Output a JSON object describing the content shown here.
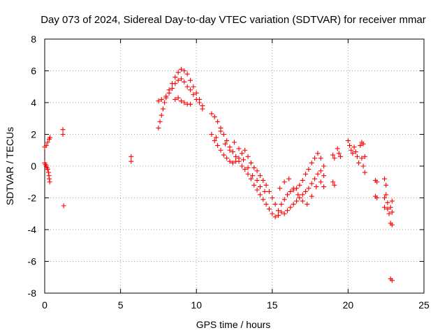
{
  "chart_data": {
    "type": "scatter",
    "title": "Day 073 of 2024, Sidereal Day-to-day VTEC variation (SDTVAR) for receiver mmar",
    "xlabel": "GPS time / hours",
    "ylabel": "SDTVAR / TECUs",
    "xlim": [
      0,
      25
    ],
    "ylim": [
      -8,
      8
    ],
    "xticks": [
      0,
      5,
      10,
      15,
      20,
      25
    ],
    "yticks": [
      -8,
      -6,
      -4,
      -2,
      0,
      2,
      4,
      6,
      8
    ],
    "grid": true,
    "marker": "+",
    "color": "#ff0000",
    "series": [
      {
        "name": "mmar",
        "points": [
          [
            0.0,
            1.2
          ],
          [
            0.1,
            1.3
          ],
          [
            0.2,
            1.5
          ],
          [
            0.3,
            1.7
          ],
          [
            0.35,
            1.8
          ],
          [
            0.0,
            0.2
          ],
          [
            0.05,
            0.1
          ],
          [
            0.1,
            0.0
          ],
          [
            0.15,
            -0.1
          ],
          [
            0.2,
            -0.2
          ],
          [
            0.25,
            -0.4
          ],
          [
            0.28,
            -0.6
          ],
          [
            0.3,
            -0.8
          ],
          [
            0.33,
            -1.0
          ],
          [
            1.2,
            2.3
          ],
          [
            1.2,
            2.0
          ],
          [
            1.25,
            -2.5
          ],
          [
            5.7,
            0.6
          ],
          [
            5.7,
            0.3
          ],
          [
            7.5,
            2.4
          ],
          [
            7.6,
            2.8
          ],
          [
            7.7,
            3.2
          ],
          [
            7.8,
            3.6
          ],
          [
            7.9,
            4.0
          ],
          [
            8.0,
            4.4
          ],
          [
            8.2,
            4.8
          ],
          [
            8.4,
            5.2
          ],
          [
            8.6,
            5.6
          ],
          [
            8.8,
            5.9
          ],
          [
            9.0,
            6.1
          ],
          [
            9.2,
            6.0
          ],
          [
            9.4,
            5.8
          ],
          [
            9.6,
            5.4
          ],
          [
            9.8,
            5.0
          ],
          [
            10.0,
            4.6
          ],
          [
            10.2,
            4.2
          ],
          [
            10.4,
            3.8
          ],
          [
            7.5,
            4.1
          ],
          [
            7.7,
            4.2
          ],
          [
            8.0,
            4.3
          ],
          [
            8.2,
            4.6
          ],
          [
            8.4,
            4.9
          ],
          [
            8.6,
            5.2
          ],
          [
            8.8,
            5.4
          ],
          [
            9.0,
            5.5
          ],
          [
            9.2,
            5.3
          ],
          [
            9.4,
            5.0
          ],
          [
            9.6,
            4.8
          ],
          [
            9.8,
            4.5
          ],
          [
            10.0,
            4.2
          ],
          [
            10.2,
            4.0
          ],
          [
            10.4,
            3.6
          ],
          [
            8.6,
            4.2
          ],
          [
            8.8,
            4.3
          ],
          [
            9.0,
            4.1
          ],
          [
            9.2,
            4.0
          ],
          [
            9.4,
            3.9
          ],
          [
            9.6,
            3.9
          ],
          [
            11.0,
            3.3
          ],
          [
            11.2,
            3.1
          ],
          [
            11.4,
            2.8
          ],
          [
            11.6,
            2.4
          ],
          [
            11.8,
            2.0
          ],
          [
            12.0,
            1.6
          ],
          [
            12.2,
            1.2
          ],
          [
            12.4,
            0.9
          ],
          [
            12.6,
            0.6
          ],
          [
            12.8,
            0.3
          ],
          [
            13.0,
            0.0
          ],
          [
            13.2,
            -0.2
          ],
          [
            13.4,
            -0.5
          ],
          [
            13.6,
            -0.8
          ],
          [
            13.8,
            -1.2
          ],
          [
            14.0,
            -1.5
          ],
          [
            14.2,
            -1.8
          ],
          [
            14.4,
            -2.1
          ],
          [
            14.6,
            -2.4
          ],
          [
            14.8,
            -2.7
          ],
          [
            15.0,
            -3.0
          ],
          [
            15.2,
            -3.2
          ],
          [
            15.4,
            -3.1
          ],
          [
            15.6,
            -2.9
          ],
          [
            11.0,
            2.0
          ],
          [
            11.2,
            1.6
          ],
          [
            11.4,
            1.3
          ],
          [
            11.6,
            1.0
          ],
          [
            11.8,
            0.7
          ],
          [
            12.0,
            0.5
          ],
          [
            12.2,
            0.3
          ],
          [
            12.4,
            0.2
          ],
          [
            12.6,
            0.3
          ],
          [
            12.8,
            0.5
          ],
          [
            13.0,
            0.8
          ],
          [
            13.2,
            1.0
          ],
          [
            13.4,
            0.6
          ],
          [
            13.6,
            0.2
          ],
          [
            13.8,
            -0.1
          ],
          [
            14.0,
            -0.3
          ],
          [
            14.2,
            -0.6
          ],
          [
            14.4,
            -0.9
          ],
          [
            14.6,
            -1.2
          ],
          [
            14.8,
            -1.6
          ],
          [
            15.0,
            -2.0
          ],
          [
            15.2,
            -2.4
          ],
          [
            15.4,
            -2.8
          ],
          [
            11.3,
            1.8
          ],
          [
            11.6,
            2.2
          ],
          [
            11.9,
            1.4
          ],
          [
            12.2,
            1.0
          ],
          [
            12.5,
            1.5
          ],
          [
            12.8,
            1.1
          ],
          [
            13.1,
            0.4
          ],
          [
            13.4,
            -0.1
          ],
          [
            13.7,
            -0.6
          ],
          [
            14.0,
            -0.9
          ],
          [
            14.2,
            -1.3
          ],
          [
            14.5,
            -1.6
          ],
          [
            15.6,
            -2.4
          ],
          [
            15.8,
            -2.1
          ],
          [
            16.0,
            -1.8
          ],
          [
            16.2,
            -1.6
          ],
          [
            16.4,
            -1.5
          ],
          [
            16.6,
            -1.4
          ],
          [
            16.8,
            -1.2
          ],
          [
            17.0,
            -0.9
          ],
          [
            17.2,
            -0.5
          ],
          [
            17.4,
            -0.2
          ],
          [
            17.6,
            0.2
          ],
          [
            17.8,
            0.5
          ],
          [
            18.0,
            0.8
          ],
          [
            18.2,
            0.5
          ],
          [
            18.4,
            0.0
          ],
          [
            15.8,
            -3.0
          ],
          [
            16.0,
            -2.8
          ],
          [
            16.2,
            -2.6
          ],
          [
            16.4,
            -2.4
          ],
          [
            16.6,
            -2.2
          ],
          [
            16.8,
            -2.0
          ],
          [
            17.0,
            -1.8
          ],
          [
            17.2,
            -1.6
          ],
          [
            17.4,
            -1.4
          ],
          [
            17.6,
            -1.1
          ],
          [
            17.8,
            -0.8
          ],
          [
            18.0,
            -0.5
          ],
          [
            18.2,
            -0.3
          ],
          [
            18.4,
            -0.6
          ],
          [
            15.5,
            -1.4
          ],
          [
            15.8,
            -1.0
          ],
          [
            16.1,
            -0.8
          ],
          [
            16.4,
            -1.4
          ],
          [
            16.7,
            -1.8
          ],
          [
            17.0,
            -2.2
          ],
          [
            17.3,
            -2.4
          ],
          [
            17.6,
            -1.9
          ],
          [
            17.9,
            -1.3
          ],
          [
            18.2,
            -1.0
          ],
          [
            18.4,
            -1.3
          ],
          [
            19.0,
            0.7
          ],
          [
            19.1,
            0.5
          ],
          [
            19.3,
            1.1
          ],
          [
            19.4,
            0.8
          ],
          [
            19.5,
            0.6
          ],
          [
            19.0,
            -1.0
          ],
          [
            19.1,
            -1.2
          ],
          [
            20.0,
            1.6
          ],
          [
            20.1,
            1.3
          ],
          [
            20.2,
            1.0
          ],
          [
            20.3,
            0.8
          ],
          [
            20.4,
            1.2
          ],
          [
            20.5,
            0.9
          ],
          [
            20.6,
            0.6
          ],
          [
            20.7,
            0.2
          ],
          [
            20.8,
            1.3
          ],
          [
            20.9,
            1.5
          ],
          [
            21.0,
            1.4
          ],
          [
            21.0,
            0.0
          ],
          [
            21.1,
            -0.4
          ],
          [
            20.9,
            0.5
          ],
          [
            21.1,
            0.6
          ],
          [
            21.8,
            -0.9
          ],
          [
            21.9,
            -1.0
          ],
          [
            21.8,
            -1.9
          ],
          [
            21.9,
            -2.0
          ],
          [
            22.4,
            -0.8
          ],
          [
            22.5,
            -1.2
          ],
          [
            22.5,
            -1.8
          ],
          [
            22.6,
            -2.3
          ],
          [
            22.6,
            -2.7
          ],
          [
            22.7,
            -3.0
          ],
          [
            22.8,
            -2.6
          ],
          [
            22.9,
            -2.2
          ],
          [
            22.9,
            -2.9
          ],
          [
            22.8,
            -3.6
          ],
          [
            22.9,
            -3.7
          ],
          [
            22.4,
            -2.0
          ],
          [
            22.4,
            -2.6
          ],
          [
            22.8,
            -7.1
          ],
          [
            22.9,
            -7.2
          ]
        ]
      }
    ]
  }
}
